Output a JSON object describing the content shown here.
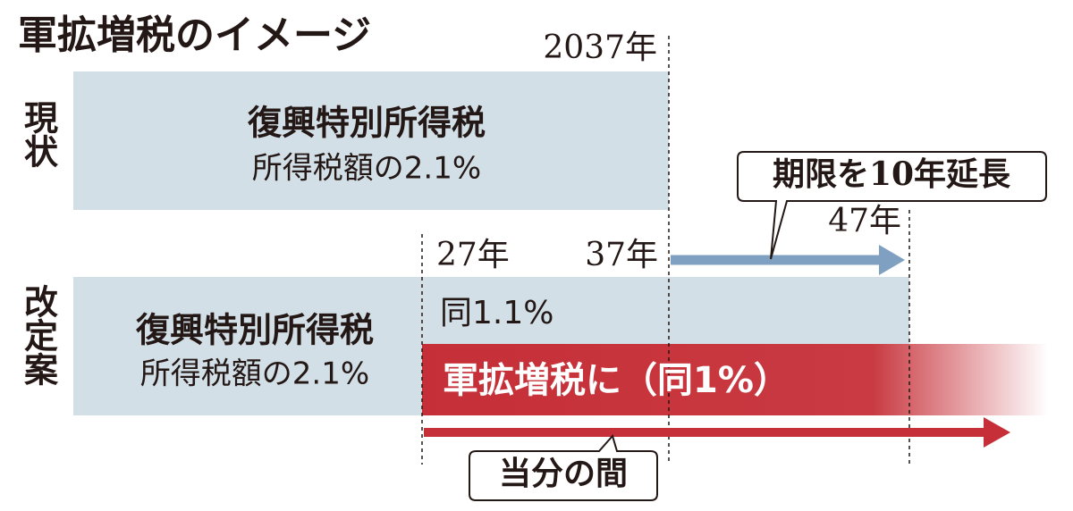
{
  "title": "軍拡増税のイメージ",
  "current": {
    "label": "現状",
    "year": "2037年",
    "tax_name": "復興特別所得税",
    "tax_rate": "所得税額の2.1%"
  },
  "extension": {
    "callout": "期限を10年延長",
    "end_year": "47年"
  },
  "revised": {
    "label": "改定案",
    "start_year": "27年",
    "mid_year": "37年",
    "tax_name": "復興特別所得税",
    "tax_rate": "所得税額の2.1%",
    "reduced_rate": "同1.1%",
    "military_tax": "軍拡増税に（同1%）",
    "duration": "当分の間"
  }
}
